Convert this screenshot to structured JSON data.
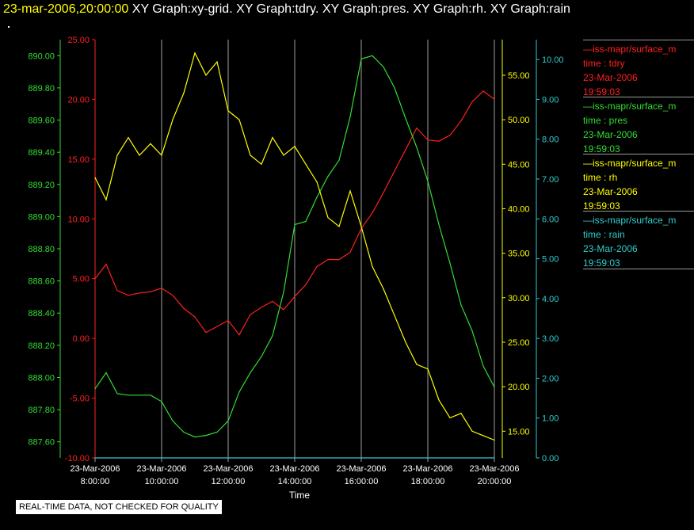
{
  "header": {
    "time": "23-mar-2006,20:00:00",
    "graphs": "XY Graph:xy-grid.  XY Graph:tdry.  XY Graph:pres.  XY Graph:rh.  XY Graph:rain"
  },
  "legend": [
    {
      "line": "—iss-mapr/surface_m",
      "field": "time : tdry",
      "date": "23-Mar-2006",
      "clock": "19:59:03",
      "color": "#ff2020"
    },
    {
      "line": "—iss-mapr/surface_m",
      "field": "time : pres",
      "date": "23-Mar-2006",
      "clock": "19:59:03",
      "color": "#33dd33"
    },
    {
      "line": "—iss-mapr/surface_m",
      "field": "time : rh",
      "date": "23-Mar-2006",
      "clock": "19:59:03",
      "color": "#ffff00"
    },
    {
      "line": "—iss-mapr/surface_m",
      "field": "time : rain",
      "date": "23-Mar-2006",
      "clock": "19:59:03",
      "color": "#33cccc"
    }
  ],
  "disclaimer": "REAL-TIME DATA, NOT CHECKED FOR QUALITY",
  "chart_data": {
    "type": "line",
    "xlabel": "Time",
    "grid": "vertical lines at each x tick",
    "x_range": [
      "08:00",
      "20:00"
    ],
    "x_ticks": [
      {
        "date": "23-Mar-2006",
        "time": "8:00:00"
      },
      {
        "date": "23-Mar-2006",
        "time": "10:00:00"
      },
      {
        "date": "23-Mar-2006",
        "time": "12:00:00"
      },
      {
        "date": "23-Mar-2006",
        "time": "14:00:00"
      },
      {
        "date": "23-Mar-2006",
        "time": "16:00:00"
      },
      {
        "date": "23-Mar-2006",
        "time": "18:00:00"
      },
      {
        "date": "23-Mar-2006",
        "time": "20:00:00"
      }
    ],
    "axes": {
      "pres": {
        "color": "#33dd33",
        "side": "left-outer",
        "range": [
          887.5,
          890.1
        ],
        "ticks": [
          "887.60",
          "887.80",
          "888.00",
          "888.20",
          "888.40",
          "888.60",
          "888.80",
          "889.00",
          "889.20",
          "889.40",
          "889.60",
          "889.80",
          "890.00"
        ]
      },
      "tdry": {
        "color": "#ff2020",
        "side": "left-inner",
        "range": [
          -10,
          25
        ],
        "ticks": [
          "-10.00",
          "-5.00",
          "0.00",
          "5.00",
          "10.00",
          "15.00",
          "20.00",
          "25.00"
        ]
      },
      "rh": {
        "color": "#ffff00",
        "side": "right-inner",
        "range": [
          12,
          59
        ],
        "ticks": [
          "15.00",
          "20.00",
          "25.00",
          "30.00",
          "35.00",
          "40.00",
          "45.00",
          "50.00",
          "55.00"
        ]
      },
      "rain": {
        "color": "#33cccc",
        "side": "right-outer",
        "range": [
          0,
          10.5
        ],
        "ticks": [
          "0.00",
          "1.00",
          "2.00",
          "3.00",
          "4.00",
          "5.00",
          "6.00",
          "7.00",
          "8.00",
          "9.00",
          "10.00"
        ]
      }
    },
    "series": [
      {
        "name": "tdry",
        "axis": "tdry",
        "color": "#ff2020",
        "x": [
          "08:00",
          "08:20",
          "08:40",
          "09:00",
          "09:20",
          "09:40",
          "10:00",
          "10:20",
          "10:40",
          "11:00",
          "11:20",
          "11:40",
          "12:00",
          "12:20",
          "12:40",
          "13:00",
          "13:20",
          "13:40",
          "14:00",
          "14:20",
          "14:40",
          "15:00",
          "15:20",
          "15:40",
          "16:00",
          "16:20",
          "16:40",
          "17:00",
          "17:20",
          "17:40",
          "18:00",
          "18:20",
          "18:40",
          "19:00",
          "19:20",
          "19:40",
          "20:00"
        ],
        "values": [
          5.0,
          6.2,
          4.0,
          3.6,
          3.8,
          3.9,
          4.2,
          3.6,
          2.5,
          1.8,
          0.5,
          1.0,
          1.5,
          0.3,
          2.0,
          2.6,
          3.1,
          2.4,
          3.5,
          4.5,
          6.0,
          6.6,
          6.6,
          7.2,
          9.2,
          10.5,
          12.2,
          14.0,
          15.8,
          17.6,
          16.6,
          16.5,
          17.0,
          18.2,
          19.8,
          20.7,
          20.0
        ]
      },
      {
        "name": "pres",
        "axis": "pres",
        "color": "#33dd33",
        "x": [
          "08:00",
          "08:20",
          "08:40",
          "09:00",
          "09:20",
          "09:40",
          "10:00",
          "10:20",
          "10:40",
          "11:00",
          "11:20",
          "11:40",
          "12:00",
          "12:20",
          "12:40",
          "13:00",
          "13:20",
          "13:40",
          "14:00",
          "14:20",
          "14:40",
          "15:00",
          "15:20",
          "15:40",
          "16:00",
          "16:20",
          "16:40",
          "17:00",
          "17:20",
          "17:40",
          "18:00",
          "18:20",
          "18:40",
          "19:00",
          "19:20",
          "19:40",
          "20:00"
        ],
        "values": [
          887.93,
          888.03,
          887.9,
          887.89,
          887.89,
          887.89,
          887.85,
          887.73,
          887.66,
          887.63,
          887.64,
          887.66,
          887.73,
          887.91,
          888.03,
          888.13,
          888.26,
          888.53,
          888.95,
          888.97,
          889.12,
          889.25,
          889.35,
          889.62,
          889.98,
          890.0,
          889.93,
          889.8,
          889.61,
          889.43,
          889.22,
          888.95,
          888.71,
          888.45,
          888.29,
          888.07,
          887.94
        ]
      },
      {
        "name": "rh",
        "axis": "rh",
        "color": "#ffff00",
        "x": [
          "08:00",
          "08:20",
          "08:40",
          "09:00",
          "09:20",
          "09:40",
          "10:00",
          "10:20",
          "10:40",
          "11:00",
          "11:20",
          "11:40",
          "12:00",
          "12:20",
          "12:40",
          "13:00",
          "13:20",
          "13:40",
          "14:00",
          "14:20",
          "14:40",
          "15:00",
          "15:20",
          "15:40",
          "16:00",
          "16:20",
          "16:40",
          "17:00",
          "17:20",
          "17:40",
          "18:00",
          "18:20",
          "18:40",
          "19:00",
          "19:20",
          "19:40",
          "20:00"
        ],
        "values": [
          43.5,
          41.0,
          46.0,
          48.0,
          46.0,
          47.3,
          46.0,
          50.0,
          53.0,
          57.5,
          55.0,
          56.5,
          51.0,
          50.0,
          46.0,
          45.0,
          48.0,
          46.0,
          47.0,
          45.0,
          43.0,
          39.0,
          38.0,
          42.0,
          38.0,
          33.5,
          31.0,
          28.0,
          25.0,
          22.5,
          22.0,
          18.5,
          16.5,
          17.0,
          15.0,
          14.5,
          14.0
        ]
      },
      {
        "name": "rain",
        "axis": "rain",
        "color": "#33cccc",
        "x": [
          "08:00",
          "20:00"
        ],
        "values": [
          0.0,
          0.0
        ]
      }
    ]
  }
}
